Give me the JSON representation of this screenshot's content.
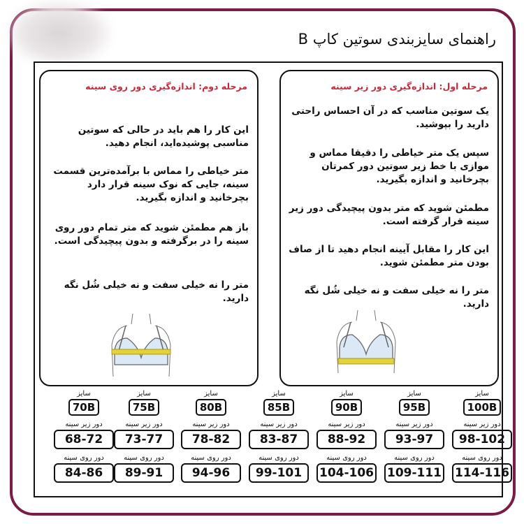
{
  "title": "راهنمای سایزبندی سوتین کاپ B",
  "colors": {
    "frame": "#7a1c45",
    "heading": "#c8283a",
    "tape": "#e3d23a",
    "cup": "#dbe8f5"
  },
  "step1": {
    "heading": "مرحله اول: اندازه‌گیری دور زیر سینه",
    "paragraphs": [
      "یک سوتین مناسب که در آن احساس راحتی دارید را بپوشید.",
      "سپس یک متر خیاطی را دقیقا مماس و موازی با خط زیر سوتین دور کمرتان بچرخانید و اندازه بگیرید.",
      "مطمئن شوید که متر بدون پیچیدگی دور زیر سینه قرار گرفته است.",
      "این کار را مقابل آیینه انجام دهید تا از صاف بودن متر مطمئن شوید.",
      "متر را نه خیلی سفت و نه خیلی شُل نگه دارید."
    ]
  },
  "step2": {
    "heading": "مرحله دوم: اندازه‌گیری دور روی سینه",
    "paragraphs": [
      "این کار را هم باید در حالی که سوتین مناسبی پوشیده‌اید، انجام دهید.",
      "متر خیاطی را مماس با برآمده‌ترین قسمت سینه، جایی که نوک سینه قرار دارد بچرخانید و اندازه بگیرید.",
      "باز هم مطمئن شوید که متر تمام دور روی سینه را در برگرفته و بدون پیچیدگی است.",
      "متر را نه خیلی سفت و نه خیلی شُل نگه دارید."
    ]
  },
  "labels": {
    "size": "سایز",
    "underbust": "دور زیر سینه",
    "bust": "دور روی سینه"
  },
  "sizes": [
    {
      "size": "100B",
      "underbust": "98-102",
      "bust": "114-116"
    },
    {
      "size": "95B",
      "underbust": "93-97",
      "bust": "109-111"
    },
    {
      "size": "90B",
      "underbust": "88-92",
      "bust": "104-106"
    },
    {
      "size": "85B",
      "underbust": "83-87",
      "bust": "99-101"
    },
    {
      "size": "80B",
      "underbust": "78-82",
      "bust": "94-96"
    },
    {
      "size": "75B",
      "underbust": "73-77",
      "bust": "89-91"
    },
    {
      "size": "70B",
      "underbust": "68-72",
      "bust": "84-86"
    }
  ]
}
